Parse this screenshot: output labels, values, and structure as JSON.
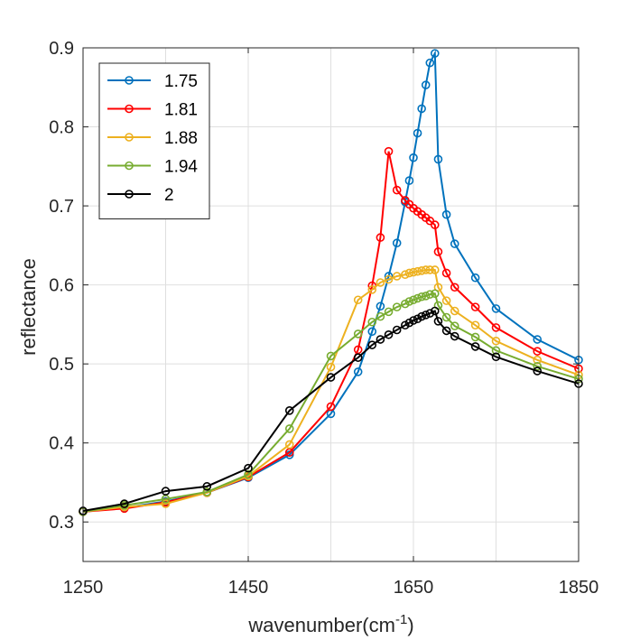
{
  "chart_data": {
    "type": "line",
    "title": "",
    "xlabel": "wavenumber(cm",
    "xlabel_sup": "-1",
    "xlabel_close": ")",
    "ylabel": "reflectance",
    "xlim": [
      1250,
      1850
    ],
    "ylim": [
      0.25,
      0.9
    ],
    "xticks": [
      1250,
      1450,
      1650,
      1850
    ],
    "yticks": [
      0.3,
      0.4,
      0.5,
      0.6,
      0.7,
      0.8,
      0.9
    ],
    "ytick_labels": [
      "0.3",
      "0.4",
      "0.5",
      "0.6",
      "0.7",
      "0.8",
      "0.9"
    ],
    "xgrid": [
      1250,
      1350,
      1450,
      1550,
      1650,
      1750,
      1850
    ],
    "grid": true,
    "legend_position": "top-left",
    "series": [
      {
        "name": "1.75",
        "color": "#0072BD",
        "points": [
          [
            1250,
            0.313
          ],
          [
            1300,
            0.318
          ],
          [
            1350,
            0.326
          ],
          [
            1400,
            0.337
          ],
          [
            1450,
            0.356
          ],
          [
            1500,
            0.385
          ],
          [
            1550,
            0.437
          ],
          [
            1583,
            0.49
          ],
          [
            1600,
            0.541
          ],
          [
            1610,
            0.573
          ],
          [
            1620,
            0.611
          ],
          [
            1630,
            0.653
          ],
          [
            1640,
            0.705
          ],
          [
            1645,
            0.732
          ],
          [
            1650,
            0.761
          ],
          [
            1655,
            0.792
          ],
          [
            1660,
            0.823
          ],
          [
            1665,
            0.853
          ],
          [
            1670,
            0.881
          ],
          [
            1676,
            0.893
          ],
          [
            1680,
            0.759
          ],
          [
            1690,
            0.689
          ],
          [
            1700,
            0.652
          ],
          [
            1725,
            0.609
          ],
          [
            1750,
            0.57
          ],
          [
            1800,
            0.531
          ],
          [
            1850,
            0.505
          ]
        ]
      },
      {
        "name": "1.81",
        "color": "#FF0000",
        "points": [
          [
            1250,
            0.313
          ],
          [
            1300,
            0.317
          ],
          [
            1350,
            0.325
          ],
          [
            1400,
            0.337
          ],
          [
            1450,
            0.357
          ],
          [
            1500,
            0.388
          ],
          [
            1550,
            0.446
          ],
          [
            1583,
            0.518
          ],
          [
            1600,
            0.599
          ],
          [
            1610,
            0.66
          ],
          [
            1620,
            0.769
          ],
          [
            1630,
            0.72
          ],
          [
            1640,
            0.707
          ],
          [
            1645,
            0.702
          ],
          [
            1650,
            0.697
          ],
          [
            1655,
            0.693
          ],
          [
            1660,
            0.689
          ],
          [
            1665,
            0.685
          ],
          [
            1670,
            0.681
          ],
          [
            1676,
            0.676
          ],
          [
            1680,
            0.642
          ],
          [
            1690,
            0.615
          ],
          [
            1700,
            0.597
          ],
          [
            1725,
            0.572
          ],
          [
            1750,
            0.546
          ],
          [
            1800,
            0.516
          ],
          [
            1850,
            0.494
          ]
        ]
      },
      {
        "name": "1.88",
        "color": "#EDB120",
        "points": [
          [
            1250,
            0.313
          ],
          [
            1300,
            0.319
          ],
          [
            1350,
            0.323
          ],
          [
            1400,
            0.337
          ],
          [
            1450,
            0.358
          ],
          [
            1500,
            0.398
          ],
          [
            1550,
            0.496
          ],
          [
            1583,
            0.581
          ],
          [
            1600,
            0.594
          ],
          [
            1610,
            0.603
          ],
          [
            1620,
            0.607
          ],
          [
            1630,
            0.611
          ],
          [
            1640,
            0.613
          ],
          [
            1645,
            0.615
          ],
          [
            1650,
            0.616
          ],
          [
            1655,
            0.617
          ],
          [
            1660,
            0.618
          ],
          [
            1665,
            0.619
          ],
          [
            1670,
            0.619
          ],
          [
            1676,
            0.619
          ],
          [
            1680,
            0.597
          ],
          [
            1690,
            0.58
          ],
          [
            1700,
            0.567
          ],
          [
            1725,
            0.549
          ],
          [
            1750,
            0.529
          ],
          [
            1800,
            0.505
          ],
          [
            1850,
            0.486
          ]
        ]
      },
      {
        "name": "1.94",
        "color": "#77AC30",
        "points": [
          [
            1250,
            0.313
          ],
          [
            1300,
            0.321
          ],
          [
            1350,
            0.329
          ],
          [
            1400,
            0.338
          ],
          [
            1450,
            0.36
          ],
          [
            1500,
            0.418
          ],
          [
            1550,
            0.51
          ],
          [
            1583,
            0.538
          ],
          [
            1600,
            0.553
          ],
          [
            1610,
            0.56
          ],
          [
            1620,
            0.566
          ],
          [
            1630,
            0.572
          ],
          [
            1640,
            0.576
          ],
          [
            1645,
            0.579
          ],
          [
            1650,
            0.581
          ],
          [
            1655,
            0.583
          ],
          [
            1660,
            0.585
          ],
          [
            1665,
            0.586
          ],
          [
            1670,
            0.588
          ],
          [
            1676,
            0.589
          ],
          [
            1680,
            0.574
          ],
          [
            1690,
            0.559
          ],
          [
            1700,
            0.548
          ],
          [
            1725,
            0.534
          ],
          [
            1750,
            0.517
          ],
          [
            1800,
            0.497
          ],
          [
            1850,
            0.481
          ]
        ]
      },
      {
        "name": "2",
        "color": "#000000",
        "points": [
          [
            1250,
            0.314
          ],
          [
            1300,
            0.323
          ],
          [
            1350,
            0.339
          ],
          [
            1400,
            0.345
          ],
          [
            1450,
            0.368
          ],
          [
            1500,
            0.441
          ],
          [
            1550,
            0.483
          ],
          [
            1583,
            0.508
          ],
          [
            1600,
            0.524
          ],
          [
            1610,
            0.531
          ],
          [
            1620,
            0.537
          ],
          [
            1630,
            0.543
          ],
          [
            1640,
            0.549
          ],
          [
            1645,
            0.552
          ],
          [
            1650,
            0.555
          ],
          [
            1655,
            0.557
          ],
          [
            1660,
            0.56
          ],
          [
            1665,
            0.562
          ],
          [
            1670,
            0.564
          ],
          [
            1676,
            0.567
          ],
          [
            1680,
            0.554
          ],
          [
            1690,
            0.542
          ],
          [
            1700,
            0.535
          ],
          [
            1725,
            0.522
          ],
          [
            1750,
            0.509
          ],
          [
            1800,
            0.491
          ],
          [
            1850,
            0.475
          ]
        ]
      }
    ]
  }
}
